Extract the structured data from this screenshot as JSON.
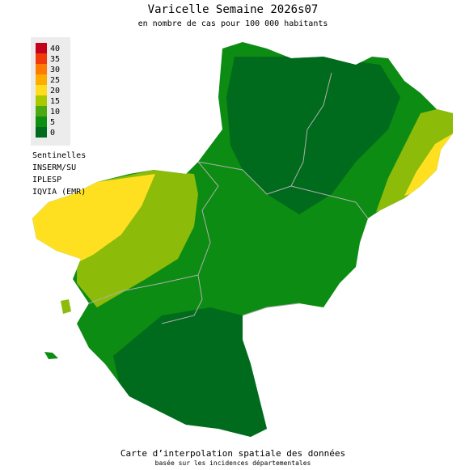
{
  "title": "Varicelle Semaine 2026s07",
  "subtitle": "en nombre de cas pour 100 000 habitants",
  "legend": {
    "items": [
      {
        "value": 40,
        "color": "#c4001c"
      },
      {
        "value": 35,
        "color": "#f03a0a"
      },
      {
        "value": 30,
        "color": "#ff7a00"
      },
      {
        "value": 25,
        "color": "#ffac00"
      },
      {
        "value": 20,
        "color": "#ffdc20"
      },
      {
        "value": 15,
        "color": "#a8c800"
      },
      {
        "value": 10,
        "color": "#4caa10"
      },
      {
        "value": 5,
        "color": "#0e8e12"
      },
      {
        "value": 0,
        "color": "#006b1c"
      }
    ]
  },
  "sources": [
    "Sentinelles",
    "INSERM/SU",
    "IPLESP",
    "IQVIA (EMR)"
  ],
  "footer": {
    "line1": "Carte d’interpolation spatiale des données",
    "line2": "basée sur les incidences départementales"
  }
}
